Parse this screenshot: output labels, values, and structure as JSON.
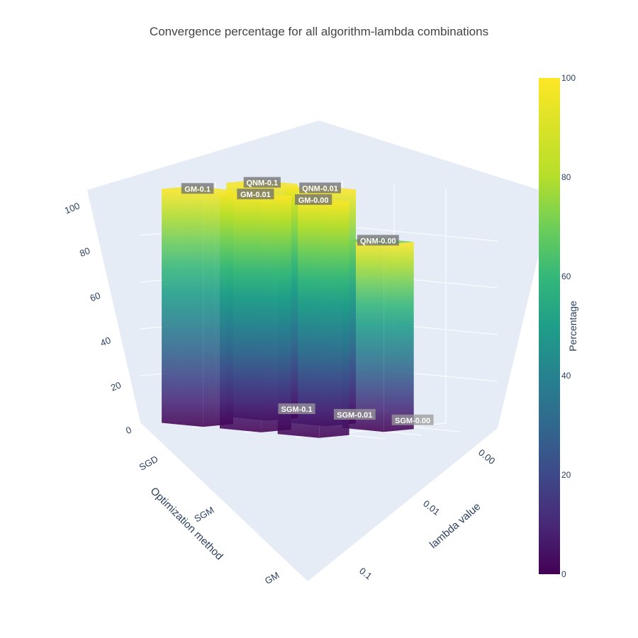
{
  "chart_data": {
    "type": "bar3d",
    "title": "Convergence percentage for all algorithm-lambda combinations",
    "x_axis": {
      "title": "Optimization method",
      "ticks": [
        "SGD",
        "SGM",
        "GM"
      ]
    },
    "y_axis": {
      "title": "lambda value",
      "ticks": [
        "0.00",
        "0.01",
        "0.1"
      ]
    },
    "z_axis": {
      "ticks": [
        "0",
        "20",
        "40",
        "60",
        "80",
        "100"
      ],
      "range": [
        0,
        100
      ]
    },
    "colorbar": {
      "title": "Percentage",
      "ticks": [
        "0",
        "20",
        "40",
        "60",
        "80",
        "100"
      ],
      "range": [
        0,
        100
      ],
      "colorscale": "Viridis"
    },
    "bars": [
      {
        "label": "GM-0.1",
        "method": "GM",
        "lambda": "0.1",
        "value": 100
      },
      {
        "label": "GM-0.01",
        "method": "GM",
        "lambda": "0.01",
        "value": 100
      },
      {
        "label": "GM-0.00",
        "method": "GM",
        "lambda": "0.00",
        "value": 100
      },
      {
        "label": "QNM-0.1",
        "method": "QNM",
        "lambda": "0.1",
        "value": 100
      },
      {
        "label": "QNM-0.01",
        "method": "QNM",
        "lambda": "0.01",
        "value": 100
      },
      {
        "label": "QNM-0.00",
        "method": "QNM",
        "lambda": "0.00",
        "value": 80
      },
      {
        "label": "SGM-0.1",
        "method": "SGM",
        "lambda": "0.1",
        "value": 0
      },
      {
        "label": "SGM-0.01",
        "method": "SGM",
        "lambda": "0.01",
        "value": 0
      },
      {
        "label": "SGM-0.00",
        "method": "SGM",
        "lambda": "0.00",
        "value": 0
      }
    ]
  }
}
